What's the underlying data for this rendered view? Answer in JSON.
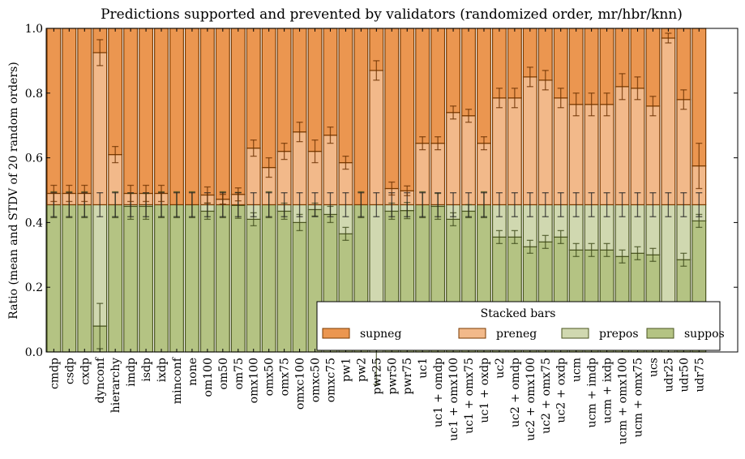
{
  "chart_data": {
    "type": "bar",
    "stacked": true,
    "title": "Predictions supported and prevented by validators (randomized order, mr/hbr/knn)",
    "xlabel": "",
    "ylabel": "Ratio (mean and STDV of 20 random orders)",
    "ylim": [
      0,
      1
    ],
    "yticks": [
      "0.0",
      "0.2",
      "0.4",
      "0.6",
      "0.8",
      "1.0"
    ],
    "grid": false,
    "legend": {
      "title": "Stacked bars",
      "placement": "lower-right",
      "entries": [
        "supneg",
        "preneg",
        "prepos",
        "suppos"
      ]
    },
    "colors": {
      "supneg": "#eb9650",
      "preneg": "#f2b98a",
      "prepos": "#d0d8b0",
      "suppos": "#b4c383"
    },
    "categories": [
      "cmdp",
      "csdp",
      "cxdp",
      "dynconf",
      "hierarchy",
      "imdp",
      "isdp",
      "ixdp",
      "minconf",
      "none",
      "om100",
      "om50",
      "om75",
      "omx100",
      "omx50",
      "omx75",
      "omxc100",
      "omxc50",
      "omxc75",
      "pw1",
      "pw2",
      "pwr25",
      "pwr50",
      "pwr75",
      "uc1",
      "uc1 + omdp",
      "uc1 + omx100",
      "uc1 + omx75",
      "uc1 + oxdp",
      "uc2",
      "uc2 + omdp",
      "uc2 + omx100",
      "uc2 + omx75",
      "uc2 + oxdp",
      "ucm",
      "ucm + imdp",
      "ucm + ixdp",
      "ucm + omx100",
      "ucm + omx75",
      "ucs",
      "udr25",
      "udr50",
      "udr75"
    ],
    "positives_total": 0.455,
    "suppos_mean": [
      0.455,
      0.455,
      0.455,
      0.08,
      0.455,
      0.45,
      0.45,
      0.455,
      0.455,
      0.455,
      0.435,
      0.455,
      0.453,
      0.41,
      0.455,
      0.435,
      0.4,
      0.44,
      0.425,
      0.365,
      0.455,
      0.0,
      0.435,
      0.437,
      0.455,
      0.45,
      0.41,
      0.435,
      0.455,
      0.355,
      0.355,
      0.325,
      0.34,
      0.355,
      0.315,
      0.315,
      0.315,
      0.295,
      0.305,
      0.3,
      0.0,
      0.285,
      0.405
    ],
    "suppos_std": [
      0.04,
      0.04,
      0.04,
      0.07,
      0.04,
      0.04,
      0.04,
      0.04,
      0.04,
      0.04,
      0.025,
      0.04,
      0.04,
      0.02,
      0.04,
      0.025,
      0.025,
      0.02,
      0.025,
      0.02,
      0.04,
      0.1,
      0.025,
      0.025,
      0.04,
      0.04,
      0.02,
      0.02,
      0.04,
      0.02,
      0.02,
      0.02,
      0.02,
      0.02,
      0.02,
      0.02,
      0.02,
      0.02,
      0.02,
      0.02,
      0.0,
      0.02,
      0.02
    ],
    "negatives_boundary_mean": [
      0.49,
      0.49,
      0.49,
      0.925,
      0.61,
      0.49,
      0.49,
      0.49,
      0.455,
      0.455,
      0.485,
      0.472,
      0.487,
      0.63,
      0.57,
      0.62,
      0.68,
      0.62,
      0.67,
      0.585,
      0.455,
      0.87,
      0.505,
      0.498,
      0.645,
      0.645,
      0.74,
      0.73,
      0.645,
      0.785,
      0.785,
      0.85,
      0.84,
      0.785,
      0.765,
      0.765,
      0.765,
      0.82,
      0.815,
      0.76,
      0.97,
      0.78,
      0.575
    ],
    "negatives_boundary_std": [
      0.025,
      0.025,
      0.025,
      0.04,
      0.025,
      0.025,
      0.025,
      0.025,
      0.0,
      0.0,
      0.025,
      0.015,
      0.02,
      0.025,
      0.03,
      0.025,
      0.03,
      0.035,
      0.025,
      0.02,
      0.0,
      0.03,
      0.02,
      0.015,
      0.02,
      0.02,
      0.02,
      0.02,
      0.02,
      0.03,
      0.03,
      0.03,
      0.03,
      0.03,
      0.035,
      0.035,
      0.035,
      0.04,
      0.035,
      0.03,
      0.015,
      0.03,
      0.07
    ]
  }
}
